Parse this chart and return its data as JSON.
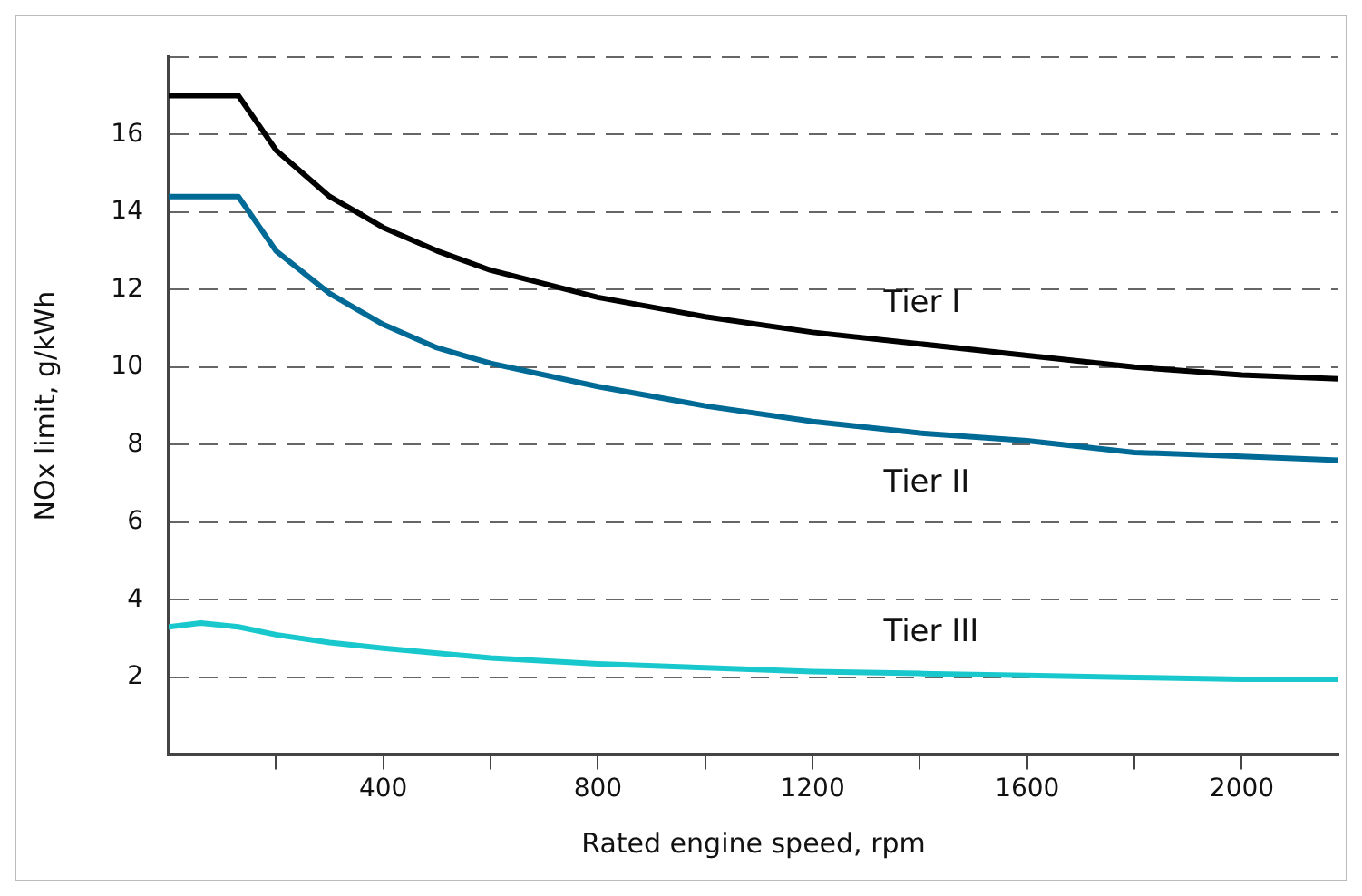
{
  "chart_data": {
    "type": "line",
    "xlabel": "Rated engine speed, rpm",
    "ylabel": "NOx limit, g/kWh",
    "xlim": [
      0,
      2180
    ],
    "xticks": [
      {
        "value": 200,
        "label": null
      },
      400,
      {
        "value": 600,
        "label": null
      },
      800,
      {
        "value": 1000,
        "label": null
      },
      1200,
      {
        "value": 1400,
        "label": null
      },
      1600,
      {
        "value": 1800,
        "label": null
      },
      2000
    ],
    "ylim": [
      0,
      18
    ],
    "yticks": [
      2,
      4,
      6,
      8,
      10,
      12,
      14,
      16,
      {
        "value": 18,
        "label": null
      }
    ],
    "grid": "y",
    "legend": false,
    "marker": "none",
    "line_style": "solid",
    "series": [
      {
        "name": "Tier I",
        "color": "#000000",
        "x": [
          0,
          130,
          200,
          300,
          400,
          500,
          600,
          800,
          1000,
          1200,
          1400,
          1600,
          1800,
          2000,
          2180
        ],
        "values": [
          17.0,
          17.0,
          15.6,
          14.4,
          13.6,
          13.0,
          12.5,
          11.8,
          11.3,
          10.9,
          10.6,
          10.3,
          10.0,
          9.8,
          9.7
        ]
      },
      {
        "name": "Tier II",
        "color": "#006a96",
        "x": [
          0,
          130,
          200,
          300,
          400,
          500,
          600,
          800,
          1000,
          1200,
          1400,
          1600,
          1800,
          2000,
          2180
        ],
        "values": [
          14.4,
          14.4,
          13.0,
          11.9,
          11.1,
          10.5,
          10.1,
          9.5,
          9.0,
          8.6,
          8.3,
          8.1,
          7.8,
          7.7,
          7.6
        ]
      },
      {
        "name": "Tier III",
        "color": "#19c8cc",
        "x": [
          0,
          60,
          130,
          200,
          300,
          400,
          600,
          800,
          1000,
          1200,
          1400,
          1600,
          1800,
          2000,
          2180
        ],
        "values": [
          3.3,
          3.4,
          3.3,
          3.1,
          2.9,
          2.75,
          2.5,
          2.35,
          2.25,
          2.15,
          2.1,
          2.05,
          2.0,
          1.95,
          1.95
        ]
      }
    ]
  }
}
